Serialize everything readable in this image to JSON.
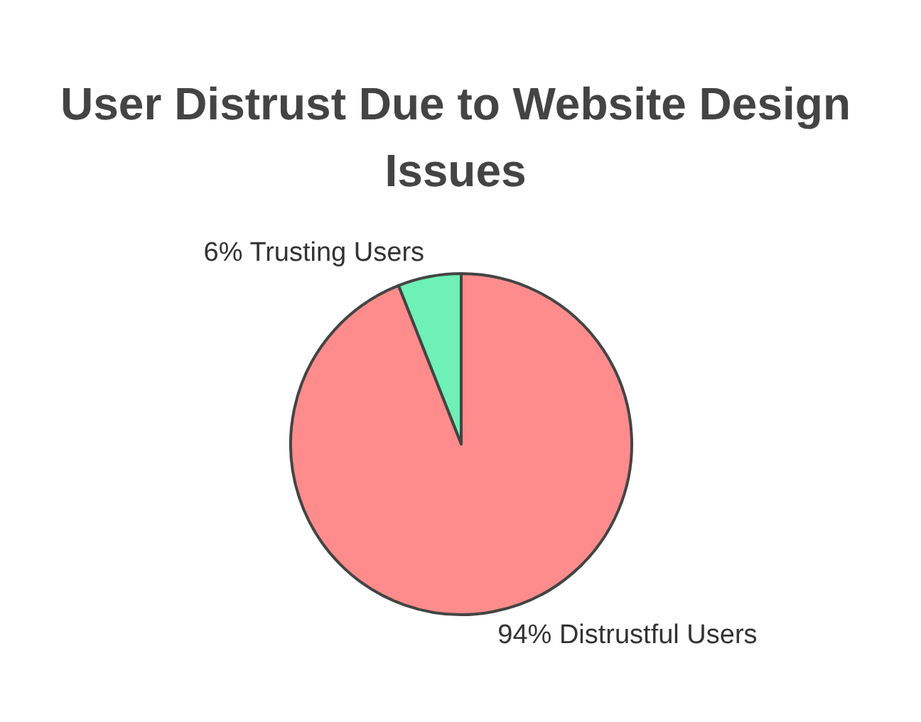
{
  "chart_data": {
    "type": "pie",
    "title": "User Distrust Due to Website Design Issues",
    "categories": [
      "6% Trusting Users",
      "94% Distrustful Users"
    ],
    "values": [
      6,
      94
    ],
    "colors": [
      "#6ef0b6",
      "#ff8c8c"
    ]
  }
}
